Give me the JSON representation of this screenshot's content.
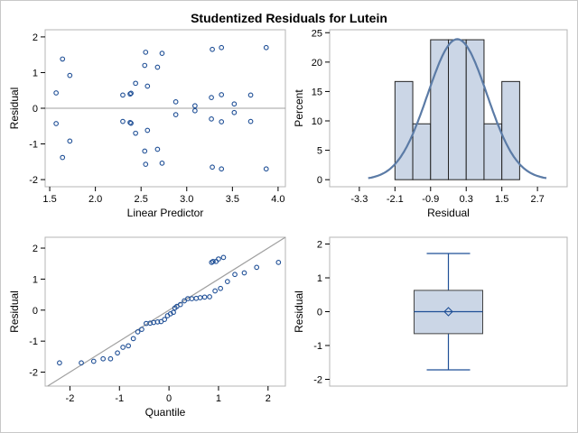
{
  "title": "Studentized Residuals for Lutein",
  "colors": {
    "marker": "#1f4f96",
    "ref_line": "#a0a0a0",
    "hist_fill": "#cbd6e6",
    "hist_edge": "#222222",
    "density": "#5b7ba6",
    "box_fill": "#cbd6e6",
    "box_line": "#1f4f96",
    "frame": "#b5b5b5"
  },
  "chart_data": [
    {
      "id": "residual-vs-predictor",
      "type": "scatter",
      "xlabel": "Linear Predictor",
      "ylabel": "Residual",
      "xlim": [
        1.45,
        4.08
      ],
      "ylim": [
        -2.2,
        2.2
      ],
      "xticks": [
        "1.5",
        "2.0",
        "2.5",
        "3.0",
        "3.5",
        "4.0"
      ],
      "xtick_values": [
        1.5,
        2.0,
        2.5,
        3.0,
        3.5,
        4.0
      ],
      "yticks": [
        "-2",
        "-1",
        "0",
        "1",
        "2"
      ],
      "ytick_values": [
        -2,
        -1,
        0,
        1,
        2
      ],
      "reference_line_y": 0,
      "points": [
        [
          1.64,
          1.38
        ],
        [
          1.57,
          0.43
        ],
        [
          1.72,
          0.92
        ],
        [
          1.57,
          -0.43
        ],
        [
          1.72,
          -0.92
        ],
        [
          1.64,
          -1.38
        ],
        [
          2.3,
          0.37
        ],
        [
          2.38,
          0.4
        ],
        [
          2.39,
          0.42
        ],
        [
          2.44,
          0.7
        ],
        [
          2.3,
          -0.37
        ],
        [
          2.38,
          -0.4
        ],
        [
          2.39,
          -0.42
        ],
        [
          2.44,
          -0.7
        ],
        [
          2.55,
          1.57
        ],
        [
          2.54,
          1.2
        ],
        [
          2.57,
          0.62
        ],
        [
          2.68,
          1.15
        ],
        [
          2.73,
          1.54
        ],
        [
          2.55,
          -1.57
        ],
        [
          2.54,
          -1.2
        ],
        [
          2.57,
          -0.62
        ],
        [
          2.68,
          -1.15
        ],
        [
          2.73,
          -1.54
        ],
        [
          2.88,
          0.18
        ],
        [
          2.88,
          -0.18
        ],
        [
          3.09,
          0.07
        ],
        [
          3.09,
          -0.07
        ],
        [
          3.28,
          1.65
        ],
        [
          3.38,
          1.7
        ],
        [
          3.27,
          0.3
        ],
        [
          3.38,
          0.38
        ],
        [
          3.52,
          0.12
        ],
        [
          3.7,
          0.37
        ],
        [
          3.28,
          -1.65
        ],
        [
          3.38,
          -1.7
        ],
        [
          3.27,
          -0.3
        ],
        [
          3.38,
          -0.38
        ],
        [
          3.52,
          -0.12
        ],
        [
          3.7,
          -0.37
        ],
        [
          3.87,
          1.7
        ],
        [
          3.87,
          -1.7
        ]
      ]
    },
    {
      "id": "residual-histogram",
      "type": "bar",
      "xlabel": "Residual",
      "ylabel": "Percent",
      "xlim": [
        -4.3,
        3.7
      ],
      "ylim": [
        -1.2,
        25.5
      ],
      "xticks": [
        "-3.3",
        "-2.1",
        "-0.9",
        "0.3",
        "1.5",
        "2.7"
      ],
      "xtick_values": [
        -3.3,
        -2.1,
        -0.9,
        0.3,
        1.5,
        2.7
      ],
      "yticks": [
        "0",
        "5",
        "10",
        "15",
        "20",
        "25"
      ],
      "ytick_values": [
        0,
        5,
        10,
        15,
        20,
        25
      ],
      "bins": [
        {
          "from": -2.1,
          "to": -1.5,
          "percent": 16.7
        },
        {
          "from": -1.5,
          "to": -0.9,
          "percent": 9.5
        },
        {
          "from": -0.9,
          "to": -0.3,
          "percent": 23.8
        },
        {
          "from": -0.3,
          "to": 0.3,
          "percent": 23.8
        },
        {
          "from": 0.3,
          "to": 0.9,
          "percent": 23.8
        },
        {
          "from": 0.9,
          "to": 1.5,
          "percent": 9.5
        },
        {
          "from": 1.5,
          "to": 2.1,
          "percent": 16.7
        }
      ],
      "normal_curve": {
        "mean": 0.0,
        "sd": 1.0,
        "peak_percent": 23.9,
        "x_range": [
          -3.0,
          3.0
        ]
      }
    },
    {
      "id": "residual-qq-plot",
      "type": "scatter",
      "xlabel": "Quantile",
      "ylabel": "Residual",
      "xlim": [
        -2.5,
        2.35
      ],
      "ylim": [
        -2.45,
        2.35
      ],
      "xticks": [
        "-2",
        "-1",
        "0",
        "1",
        "2"
      ],
      "xtick_values": [
        -2,
        -1,
        0,
        1,
        2
      ],
      "yticks": [
        "-2",
        "-1",
        "0",
        "1",
        "2"
      ],
      "ytick_values": [
        -2,
        -1,
        0,
        1,
        2
      ],
      "reference_line": {
        "intercept": 0,
        "slope": 1
      },
      "points": [
        [
          -2.21,
          -1.7
        ],
        [
          -1.77,
          -1.7
        ],
        [
          -1.52,
          -1.65
        ],
        [
          -1.33,
          -1.57
        ],
        [
          -1.18,
          -1.57
        ],
        [
          -1.04,
          -1.38
        ],
        [
          -0.93,
          -1.2
        ],
        [
          -0.82,
          -1.15
        ],
        [
          -0.72,
          -0.92
        ],
        [
          -0.63,
          -0.7
        ],
        [
          -0.55,
          -0.62
        ],
        [
          -0.46,
          -0.43
        ],
        [
          -0.38,
          -0.42
        ],
        [
          -0.31,
          -0.4
        ],
        [
          -0.23,
          -0.38
        ],
        [
          -0.16,
          -0.37
        ],
        [
          -0.09,
          -0.3
        ],
        [
          -0.03,
          -0.18
        ],
        [
          0.03,
          -0.12
        ],
        [
          0.09,
          -0.07
        ],
        [
          0.12,
          0.07
        ],
        [
          0.16,
          0.12
        ],
        [
          0.23,
          0.18
        ],
        [
          0.31,
          0.3
        ],
        [
          0.38,
          0.37
        ],
        [
          0.46,
          0.37
        ],
        [
          0.55,
          0.38
        ],
        [
          0.63,
          0.4
        ],
        [
          0.72,
          0.42
        ],
        [
          0.82,
          0.43
        ],
        [
          0.93,
          0.62
        ],
        [
          1.04,
          0.7
        ],
        [
          1.18,
          0.92
        ],
        [
          1.33,
          1.15
        ],
        [
          1.52,
          1.2
        ],
        [
          1.77,
          1.38
        ],
        [
          2.21,
          1.54
        ],
        [
          0.86,
          1.54
        ],
        [
          0.89,
          1.57
        ],
        [
          0.95,
          1.57
        ],
        [
          1.0,
          1.65
        ],
        [
          1.1,
          1.7
        ]
      ]
    },
    {
      "id": "residual-boxplot",
      "type": "box",
      "ylabel": "Residual",
      "ylim": [
        -2.2,
        2.2
      ],
      "yticks": [
        "-2",
        "-1",
        "0",
        "1",
        "2"
      ],
      "ytick_values": [
        -2,
        -1,
        0,
        1,
        2
      ],
      "min": -1.72,
      "q1": -0.65,
      "median": 0.0,
      "mean": 0.0,
      "q3": 0.63,
      "max": 1.72
    }
  ]
}
